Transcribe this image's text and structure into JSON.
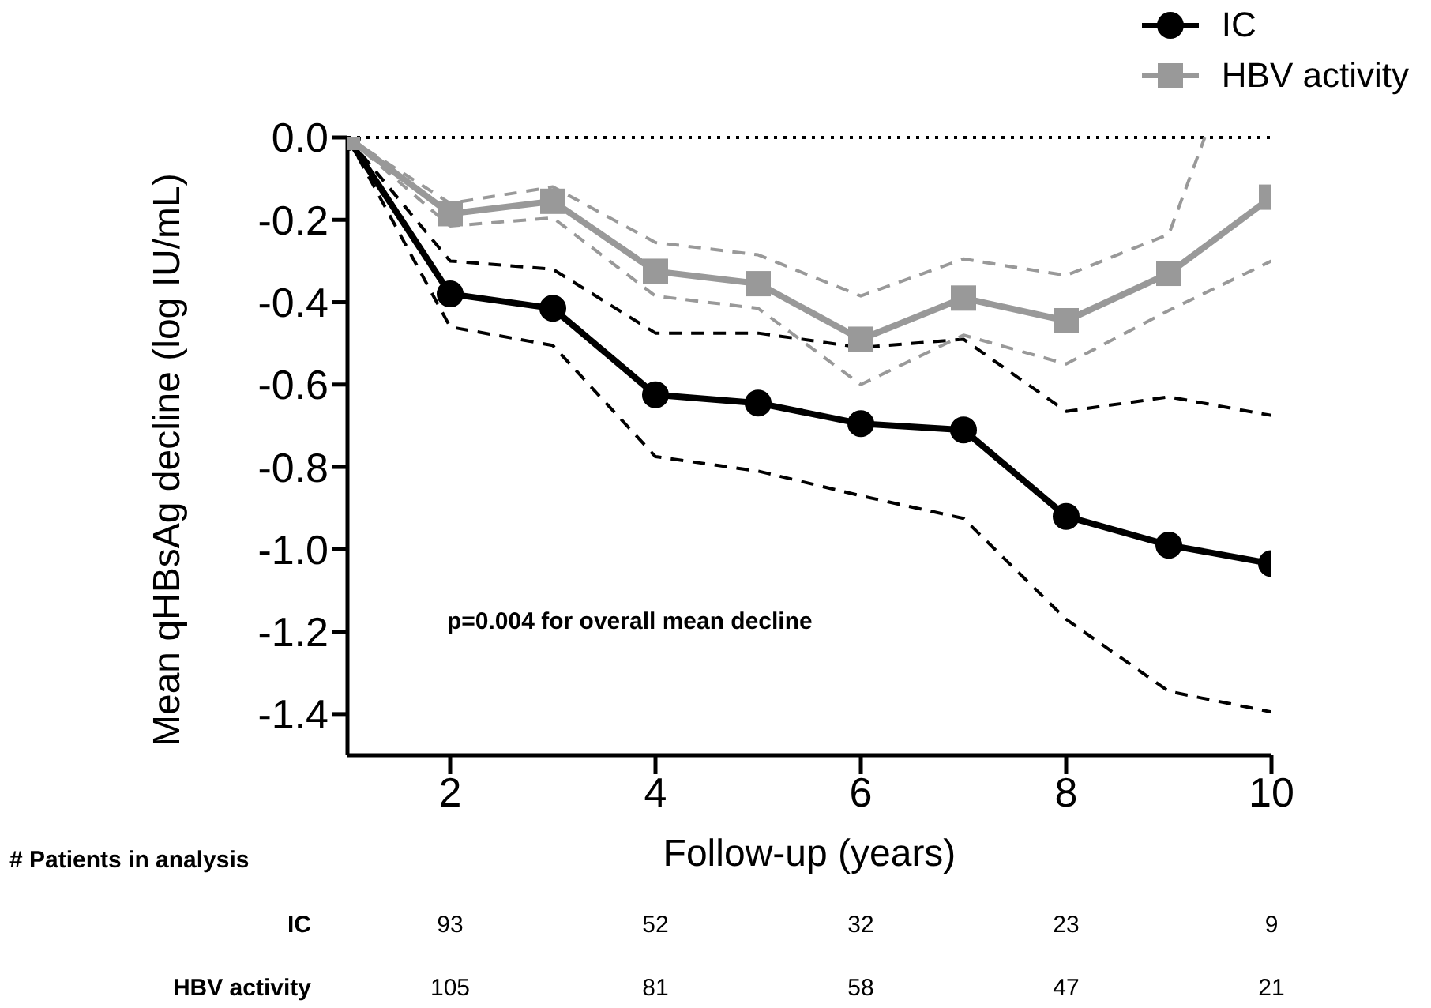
{
  "chart_data": {
    "type": "line",
    "xlabel": "Follow-up (years)",
    "ylabel": "Mean qHBsAg decline (log IU/mL)",
    "xlim": [
      1,
      10
    ],
    "xticks": [
      2,
      4,
      6,
      8,
      10
    ],
    "ylim": [
      -1.5,
      0
    ],
    "yticks": [
      {
        "value": 0,
        "label": "0.0"
      },
      -0.2,
      -0.4,
      -0.6,
      -0.8,
      {
        "value": -1,
        "label": "-1.0"
      },
      -1.2,
      -1.4
    ],
    "series": [
      {
        "name": "IC",
        "color": "#000000",
        "marker": "circle",
        "line_style": "solid",
        "x": [
          1,
          2,
          3,
          4,
          5,
          6,
          7,
          8,
          9,
          10
        ],
        "values": [
          0,
          -0.38,
          -0.415,
          -0.625,
          -0.645,
          -0.695,
          -0.71,
          -0.92,
          -0.99,
          -1.035
        ]
      },
      {
        "name": "HBV activity",
        "color": "#999999",
        "marker": "square",
        "line_style": "solid",
        "x": [
          1,
          2,
          3,
          4,
          5,
          6,
          7,
          8,
          9,
          10
        ],
        "values": [
          0,
          -0.185,
          -0.155,
          -0.325,
          -0.355,
          -0.49,
          -0.39,
          -0.445,
          -0.33,
          -0.145
        ]
      },
      {
        "color": "#000000",
        "marker": "none",
        "line_style": "dashed",
        "x": [
          1,
          2,
          3,
          4,
          5,
          6,
          7,
          8,
          9,
          10
        ],
        "values": [
          0,
          -0.3,
          -0.32,
          -0.475,
          -0.475,
          -0.51,
          -0.49,
          -0.665,
          -0.63,
          -0.675
        ]
      },
      {
        "color": "#000000",
        "marker": "none",
        "line_style": "dashed",
        "x": [
          1,
          2,
          3,
          4,
          5,
          6,
          7,
          8,
          9,
          10
        ],
        "values": [
          0,
          -0.46,
          -0.505,
          -0.775,
          -0.81,
          -0.87,
          -0.925,
          -1.17,
          -1.345,
          -1.395
        ]
      },
      {
        "color": "#999999",
        "marker": "none",
        "line_style": "dashed",
        "x": [
          1,
          2,
          3,
          4,
          5,
          6,
          7,
          8,
          9,
          9.35
        ],
        "values": [
          0,
          -0.16,
          -0.12,
          -0.255,
          -0.285,
          -0.385,
          -0.295,
          -0.335,
          -0.235,
          0
        ]
      },
      {
        "color": "#999999",
        "marker": "none",
        "line_style": "dashed",
        "x": [
          1,
          2,
          3,
          4,
          5,
          6,
          7,
          8,
          9,
          10
        ],
        "values": [
          0,
          -0.215,
          -0.195,
          -0.385,
          -0.415,
          -0.6,
          -0.48,
          -0.55,
          -0.42,
          -0.3
        ]
      }
    ],
    "ref_lines": [
      {
        "axis": "y",
        "value": 0,
        "color": "#000000",
        "line_style": "dotted"
      }
    ],
    "legend": "top right",
    "grid": false,
    "annotations": [
      "p=0.004 for overall mean decline",
      "# Patients in analysis",
      "IC",
      "93",
      "52",
      "32",
      "23",
      "9",
      "HBV activity",
      "105",
      "81",
      "58",
      "47",
      "21"
    ]
  }
}
